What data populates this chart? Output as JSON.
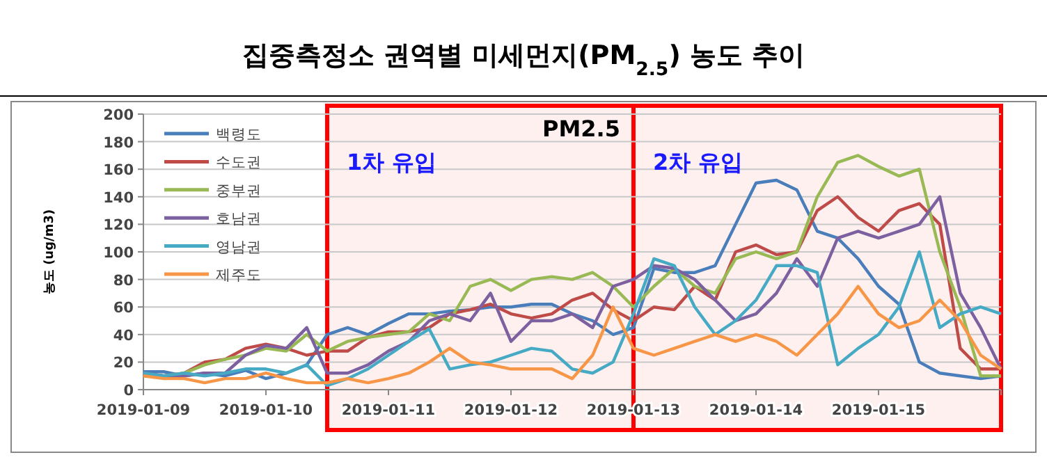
{
  "chart_data": {
    "type": "line",
    "title": "집중측정소 권역별 미세먼지(PM$_{2.5}$) 농도 추이",
    "ylabel": "농도 (ug/m3)",
    "annotations": [
      "PM2.5"
    ],
    "x": [
      "2019-01-09T00:00",
      "2019-01-09T04:00",
      "2019-01-09T08:00",
      "2019-01-09T12:00",
      "2019-01-09T16:00",
      "2019-01-09T20:00",
      "2019-01-10T00:00",
      "2019-01-10T04:00",
      "2019-01-10T08:00",
      "2019-01-10T12:00",
      "2019-01-10T16:00",
      "2019-01-10T20:00",
      "2019-01-11T00:00",
      "2019-01-11T04:00",
      "2019-01-11T08:00",
      "2019-01-11T12:00",
      "2019-01-11T16:00",
      "2019-01-11T20:00",
      "2019-01-12T00:00",
      "2019-01-12T04:00",
      "2019-01-12T08:00",
      "2019-01-12T12:00",
      "2019-01-12T16:00",
      "2019-01-12T20:00",
      "2019-01-13T00:00",
      "2019-01-13T04:00",
      "2019-01-13T08:00",
      "2019-01-13T12:00",
      "2019-01-13T16:00",
      "2019-01-13T20:00",
      "2019-01-14T00:00",
      "2019-01-14T04:00",
      "2019-01-14T08:00",
      "2019-01-14T12:00",
      "2019-01-14T16:00",
      "2019-01-14T20:00",
      "2019-01-15T00:00",
      "2019-01-15T04:00",
      "2019-01-15T08:00",
      "2019-01-15T12:00",
      "2019-01-15T16:00",
      "2019-01-15T20:00",
      "2019-01-16T00:00"
    ],
    "series": [
      {
        "name": "백령도",
        "color": "#4a7ebb",
        "values": [
          13,
          13,
          10,
          12,
          10,
          14,
          8,
          12,
          18,
          40,
          45,
          40,
          48,
          55,
          55,
          57,
          58,
          60,
          60,
          62,
          62,
          55,
          50,
          40,
          45,
          88,
          85,
          85,
          90,
          120,
          150,
          152,
          145,
          115,
          110,
          95,
          75,
          62,
          20,
          12,
          10,
          8,
          10
        ]
      },
      {
        "name": "수도권",
        "color": "#be4b48",
        "values": [
          12,
          10,
          12,
          20,
          22,
          30,
          33,
          30,
          25,
          28,
          28,
          38,
          42,
          42,
          45,
          55,
          58,
          62,
          55,
          52,
          55,
          65,
          70,
          58,
          50,
          60,
          58,
          75,
          65,
          100,
          105,
          98,
          100,
          130,
          140,
          125,
          115,
          130,
          135,
          120,
          30,
          15,
          15
        ]
      },
      {
        "name": "중부권",
        "color": "#98b954",
        "values": [
          10,
          10,
          12,
          18,
          22,
          25,
          30,
          28,
          40,
          28,
          35,
          38,
          40,
          42,
          55,
          50,
          75,
          80,
          72,
          80,
          82,
          80,
          85,
          75,
          60,
          75,
          88,
          75,
          70,
          95,
          100,
          95,
          100,
          140,
          165,
          170,
          162,
          155,
          160,
          100,
          60,
          10,
          10
        ]
      },
      {
        "name": "호남권",
        "color": "#7d60a0",
        "values": [
          12,
          10,
          10,
          12,
          12,
          25,
          32,
          30,
          45,
          12,
          12,
          18,
          28,
          35,
          50,
          55,
          50,
          70,
          35,
          50,
          50,
          55,
          45,
          75,
          80,
          90,
          88,
          80,
          65,
          50,
          55,
          70,
          95,
          75,
          110,
          115,
          110,
          115,
          120,
          140,
          70,
          45,
          15
        ]
      },
      {
        "name": "영남권",
        "color": "#46aac5",
        "values": [
          12,
          10,
          12,
          10,
          12,
          15,
          15,
          12,
          18,
          3,
          8,
          15,
          25,
          35,
          44,
          15,
          18,
          20,
          25,
          30,
          28,
          15,
          12,
          20,
          55,
          95,
          90,
          60,
          40,
          50,
          65,
          90,
          90,
          85,
          18,
          30,
          40,
          60,
          100,
          45,
          55,
          60,
          55
        ]
      },
      {
        "name": "제주도",
        "color": "#f79646",
        "values": [
          10,
          8,
          8,
          5,
          8,
          8,
          12,
          8,
          5,
          5,
          8,
          5,
          8,
          12,
          20,
          30,
          20,
          18,
          15,
          15,
          15,
          8,
          25,
          60,
          30,
          25,
          30,
          35,
          40,
          35,
          40,
          35,
          25,
          40,
          55,
          75,
          55,
          45,
          50,
          65,
          50,
          25,
          15
        ]
      }
    ],
    "xlim": [
      "2019-01-09",
      "2019-01-16"
    ],
    "xticks": [
      {
        "value": "2019-01-09",
        "label": "2019-01-09"
      },
      {
        "value": "2019-01-10",
        "label": "2019-01-10"
      },
      {
        "value": "2019-01-11",
        "label": "2019-01-11"
      },
      {
        "value": "2019-01-12",
        "label": "2019-01-12"
      },
      {
        "value": "2019-01-13",
        "label": "2019-01-13"
      },
      {
        "value": "2019-01-14",
        "label": "2019-01-14"
      },
      {
        "value": "2019-01-15",
        "label": "2019-01-15"
      },
      {
        "value": "2019-01-16",
        "label": null
      }
    ],
    "ylim": [
      0,
      200
    ],
    "yticks": [
      0,
      20,
      40,
      60,
      80,
      100,
      120,
      140,
      160,
      180,
      200
    ],
    "bands": [
      {
        "axis": "x",
        "from": "2019-01-10T12:00",
        "to": "2019-01-13T00:00",
        "label": "1차 유입",
        "color": "#ff0000"
      },
      {
        "axis": "x",
        "from": "2019-01-13T00:00",
        "to": "2019-01-16T00:00",
        "label": "2차 유입",
        "color": "#ff0000"
      }
    ],
    "grid": "y",
    "legend": "top left",
    "marker": "none",
    "line_style": "solid"
  }
}
